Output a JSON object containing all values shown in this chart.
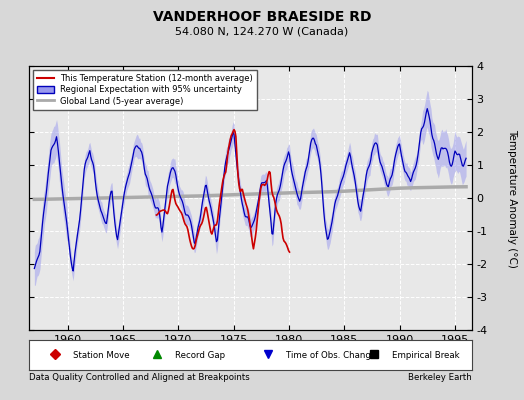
{
  "title": "VANDERHOOF BRAESIDE RD",
  "subtitle": "54.080 N, 124.270 W (Canada)",
  "ylabel": "Temperature Anomaly (°C)",
  "xlabel_left": "Data Quality Controlled and Aligned at Breakpoints",
  "xlabel_right": "Berkeley Earth",
  "ylim": [
    -4,
    4
  ],
  "xlim": [
    1956.5,
    1996.5
  ],
  "yticks": [
    -4,
    -3,
    -2,
    -1,
    0,
    1,
    2,
    3,
    4
  ],
  "xticks": [
    1960,
    1965,
    1970,
    1975,
    1980,
    1985,
    1990,
    1995
  ],
  "bg_color": "#d8d8d8",
  "plot_bg_color": "#e8e8e8",
  "grid_color": "#ffffff",
  "blue_line_color": "#0000bb",
  "blue_fill_color": "#9999ee",
  "red_line_color": "#cc0000",
  "gray_line_color": "#aaaaaa",
  "legend_items": [
    "This Temperature Station (12-month average)",
    "Regional Expectation with 95% uncertainty",
    "Global Land (5-year average)"
  ],
  "bottom_legend": [
    {
      "marker": "D",
      "color": "#cc0000",
      "label": "Station Move"
    },
    {
      "marker": "^",
      "color": "#008800",
      "label": "Record Gap"
    },
    {
      "marker": "v",
      "color": "#0000cc",
      "label": "Time of Obs. Change"
    },
    {
      "marker": "s",
      "color": "#000000",
      "label": "Empirical Break"
    }
  ]
}
